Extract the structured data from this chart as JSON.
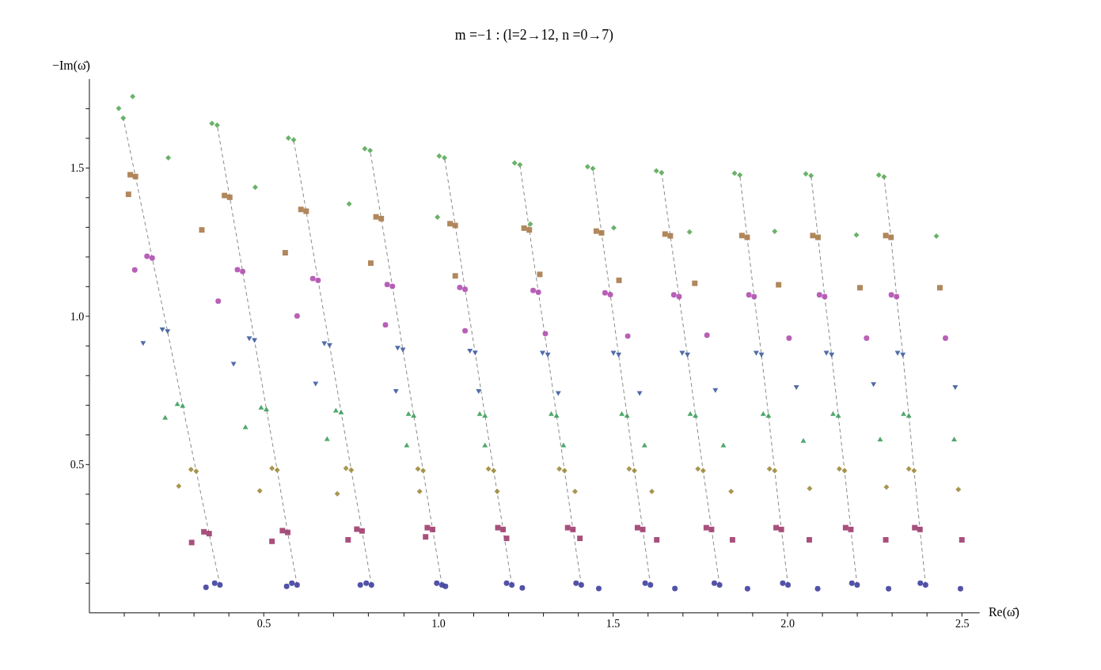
{
  "chart_data": {
    "type": "scatter",
    "title": "m =−1 : (l=2→12, n =0→7)",
    "xlabel": "Re(ω̄)",
    "ylabel": "−Im(ω̄)",
    "xlim": [
      0,
      2.55
    ],
    "ylim": [
      0,
      1.8
    ],
    "xticks": [
      {
        "value": 0.1,
        "label": null
      },
      {
        "value": 0.2,
        "label": null
      },
      {
        "value": 0.3,
        "label": null
      },
      {
        "value": 0.4,
        "label": null
      },
      0.5,
      {
        "value": 0.6,
        "label": null
      },
      {
        "value": 0.7,
        "label": null
      },
      {
        "value": 0.8,
        "label": null
      },
      {
        "value": 0.9,
        "label": null
      },
      {
        "value": 1,
        "label": "1.0"
      },
      {
        "value": 1.1,
        "label": null
      },
      {
        "value": 1.2,
        "label": null
      },
      {
        "value": 1.3,
        "label": null
      },
      {
        "value": 1.4,
        "label": null
      },
      1.5,
      {
        "value": 1.6,
        "label": null
      },
      {
        "value": 1.7,
        "label": null
      },
      {
        "value": 1.8,
        "label": null
      },
      {
        "value": 1.9,
        "label": null
      },
      {
        "value": 2,
        "label": "2.0"
      },
      {
        "value": 2.1,
        "label": null
      },
      {
        "value": 2.2,
        "label": null
      },
      {
        "value": 2.3,
        "label": null
      },
      {
        "value": 2.4,
        "label": null
      },
      2.5
    ],
    "yticks": [
      {
        "value": 0.1,
        "label": null
      },
      {
        "value": 0.2,
        "label": null
      },
      {
        "value": 0.3,
        "label": null
      },
      {
        "value": 0.4,
        "label": null
      },
      0.5,
      {
        "value": 0.6,
        "label": null
      },
      {
        "value": 0.7,
        "label": null
      },
      {
        "value": 0.8,
        "label": null
      },
      {
        "value": 0.9,
        "label": null
      },
      {
        "value": 1,
        "label": "1.0"
      },
      {
        "value": 1.1,
        "label": null
      },
      {
        "value": 1.2,
        "label": null
      },
      {
        "value": 1.3,
        "label": null
      },
      {
        "value": 1.4,
        "label": null
      },
      1.5,
      {
        "value": 1.6,
        "label": null
      },
      {
        "value": 1.7,
        "label": null
      }
    ],
    "grid": false,
    "series": [
      {
        "type": "line",
        "line_style": "dashed",
        "color": "#808080",
        "x": [
          0.375,
          0.344,
          0.307,
          0.268,
          0.225,
          0.181,
          0.133,
          0.098
        ],
        "values": [
          0.093,
          0.266,
          0.476,
          0.698,
          0.947,
          1.195,
          1.47,
          1.667
        ]
      },
      {
        "type": "line",
        "line_style": "dashed",
        "color": "#808080",
        "x": [
          0.596,
          0.569,
          0.539,
          0.508,
          0.474,
          0.44,
          0.403,
          0.367
        ],
        "values": [
          0.093,
          0.27,
          0.48,
          0.686,
          0.917,
          1.15,
          1.4,
          1.643
        ]
      },
      {
        "type": "line",
        "line_style": "dashed",
        "color": "#808080",
        "x": [
          0.809,
          0.782,
          0.751,
          0.722,
          0.689,
          0.656,
          0.622,
          0.586
        ],
        "values": [
          0.093,
          0.275,
          0.48,
          0.676,
          0.9,
          1.12,
          1.353,
          1.594
        ]
      },
      {
        "type": "line",
        "line_style": "dashed",
        "color": "#808080",
        "x": [
          1.011,
          0.984,
          0.957,
          0.93,
          0.899,
          0.869,
          0.837,
          0.805
        ],
        "values": [
          0.093,
          0.28,
          0.478,
          0.665,
          0.885,
          1.1,
          1.328,
          1.558
        ]
      },
      {
        "type": "line",
        "line_style": "dashed",
        "color": "#808080",
        "x": [
          1.211,
          1.186,
          1.159,
          1.134,
          1.106,
          1.077,
          1.049,
          1.018
        ],
        "values": [
          0.093,
          0.28,
          0.478,
          0.665,
          0.875,
          1.09,
          1.305,
          1.533
        ]
      },
      {
        "type": "line",
        "line_style": "dashed",
        "color": "#808080",
        "x": [
          1.41,
          1.386,
          1.362,
          1.339,
          1.314,
          1.287,
          1.261,
          1.234
        ],
        "values": [
          0.093,
          0.28,
          0.478,
          0.665,
          0.868,
          1.08,
          1.29,
          1.51
        ]
      },
      {
        "type": "line",
        "line_style": "dashed",
        "color": "#808080",
        "x": [
          1.608,
          1.586,
          1.562,
          1.541,
          1.517,
          1.493,
          1.468,
          1.443
        ],
        "values": [
          0.093,
          0.28,
          0.478,
          0.665,
          0.868,
          1.072,
          1.28,
          1.497
        ]
      },
      {
        "type": "line",
        "line_style": "dashed",
        "color": "#808080",
        "x": [
          1.806,
          1.783,
          1.759,
          1.737,
          1.714,
          1.69,
          1.665,
          1.64
        ],
        "values": [
          0.093,
          0.28,
          0.478,
          0.665,
          0.868,
          1.065,
          1.27,
          1.483
        ]
      },
      {
        "type": "line",
        "line_style": "dashed",
        "color": "#808080",
        "x": [
          2.002,
          1.983,
          1.964,
          1.946,
          1.926,
          1.905,
          1.885,
          1.864
        ],
        "values": [
          0.093,
          0.28,
          0.478,
          0.665,
          0.868,
          1.065,
          1.265,
          1.475
        ]
      },
      {
        "type": "line",
        "line_style": "dashed",
        "color": "#808080",
        "x": [
          2.2,
          2.182,
          2.164,
          2.146,
          2.127,
          2.107,
          2.088,
          2.068
        ],
        "values": [
          0.093,
          0.28,
          0.478,
          0.665,
          0.868,
          1.065,
          1.265,
          1.473
        ]
      },
      {
        "type": "line",
        "line_style": "dashed",
        "color": "#808080",
        "x": [
          2.396,
          2.38,
          2.363,
          2.348,
          2.331,
          2.313,
          2.297,
          2.277
        ],
        "values": [
          0.093,
          0.28,
          0.478,
          0.665,
          0.868,
          1.065,
          1.265,
          1.469
        ]
      },
      {
        "marker": "circle",
        "color": "#3f3f9f",
        "x": [
          0.375,
          0.36,
          0.335,
          0.596,
          0.581,
          0.566,
          0.809,
          0.794,
          0.777,
          1.011,
          0.996,
          1.021,
          1.211,
          1.196,
          1.241,
          1.41,
          1.395,
          1.46,
          1.608,
          1.593,
          1.678,
          1.806,
          1.791,
          1.886,
          2.002,
          1.987,
          2.087,
          2.2,
          2.185,
          2.29,
          2.396,
          2.381,
          2.496
        ],
        "values": [
          0.093,
          0.099,
          0.085,
          0.093,
          0.099,
          0.088,
          0.093,
          0.099,
          0.093,
          0.093,
          0.099,
          0.088,
          0.093,
          0.099,
          0.083,
          0.093,
          0.099,
          0.081,
          0.093,
          0.099,
          0.081,
          0.093,
          0.099,
          0.08,
          0.093,
          0.099,
          0.08,
          0.093,
          0.099,
          0.08,
          0.093,
          0.099,
          0.08
        ]
      },
      {
        "marker": "square",
        "color": "#9e3d6e",
        "x": [
          0.344,
          0.329,
          0.294,
          0.569,
          0.554,
          0.524,
          0.782,
          0.767,
          0.742,
          0.984,
          0.969,
          0.964,
          1.186,
          1.171,
          1.196,
          1.386,
          1.371,
          1.406,
          1.586,
          1.571,
          1.626,
          1.783,
          1.768,
          1.843,
          1.983,
          1.968,
          2.063,
          2.182,
          2.167,
          2.282,
          2.38,
          2.365,
          2.5
        ],
        "values": [
          0.266,
          0.272,
          0.236,
          0.27,
          0.276,
          0.24,
          0.275,
          0.281,
          0.245,
          0.28,
          0.286,
          0.255,
          0.28,
          0.286,
          0.25,
          0.28,
          0.286,
          0.25,
          0.28,
          0.286,
          0.245,
          0.28,
          0.286,
          0.245,
          0.28,
          0.286,
          0.245,
          0.28,
          0.286,
          0.245,
          0.28,
          0.286,
          0.245
        ]
      },
      {
        "marker": "diamond",
        "color": "#9e8b3d",
        "x": [
          0.307,
          0.292,
          0.257,
          0.539,
          0.524,
          0.489,
          0.751,
          0.736,
          0.711,
          0.957,
          0.942,
          0.947,
          1.159,
          1.144,
          1.169,
          1.362,
          1.347,
          1.392,
          1.562,
          1.547,
          1.612,
          1.759,
          1.744,
          1.839,
          1.964,
          1.949,
          2.064,
          2.164,
          2.149,
          2.284,
          2.363,
          2.348,
          2.49
        ],
        "values": [
          0.476,
          0.482,
          0.426,
          0.48,
          0.486,
          0.41,
          0.48,
          0.486,
          0.4,
          0.478,
          0.484,
          0.408,
          0.478,
          0.484,
          0.408,
          0.478,
          0.484,
          0.408,
          0.478,
          0.484,
          0.408,
          0.478,
          0.484,
          0.408,
          0.478,
          0.484,
          0.418,
          0.478,
          0.484,
          0.423,
          0.478,
          0.484,
          0.415
        ]
      },
      {
        "marker": "triangle",
        "color": "#3d9e5c",
        "x": [
          0.268,
          0.253,
          0.218,
          0.508,
          0.493,
          0.448,
          0.722,
          0.707,
          0.682,
          0.93,
          0.915,
          0.91,
          1.134,
          1.119,
          1.134,
          1.339,
          1.324,
          1.359,
          1.541,
          1.526,
          1.591,
          1.737,
          1.722,
          1.817,
          1.946,
          1.931,
          2.046,
          2.146,
          2.131,
          2.266,
          2.348,
          2.333,
          2.478
        ],
        "values": [
          0.698,
          0.704,
          0.658,
          0.686,
          0.692,
          0.626,
          0.676,
          0.682,
          0.586,
          0.665,
          0.671,
          0.565,
          0.665,
          0.671,
          0.565,
          0.665,
          0.671,
          0.565,
          0.665,
          0.671,
          0.565,
          0.665,
          0.671,
          0.565,
          0.665,
          0.671,
          0.58,
          0.665,
          0.671,
          0.585,
          0.665,
          0.671,
          0.585
        ]
      },
      {
        "marker": "triangle-down",
        "color": "#3d5c9e",
        "x": [
          0.225,
          0.21,
          0.155,
          0.474,
          0.459,
          0.414,
          0.689,
          0.674,
          0.649,
          0.899,
          0.884,
          0.879,
          1.106,
          1.091,
          1.116,
          1.314,
          1.299,
          1.344,
          1.517,
          1.502,
          1.577,
          1.714,
          1.699,
          1.794,
          1.926,
          1.911,
          2.026,
          2.127,
          2.112,
          2.247,
          2.331,
          2.316,
          2.481
        ],
        "values": [
          0.947,
          0.953,
          0.907,
          0.917,
          0.923,
          0.837,
          0.9,
          0.906,
          0.77,
          0.885,
          0.891,
          0.745,
          0.875,
          0.881,
          0.745,
          0.868,
          0.874,
          0.738,
          0.868,
          0.874,
          0.738,
          0.868,
          0.874,
          0.748,
          0.868,
          0.874,
          0.758,
          0.868,
          0.874,
          0.768,
          0.868,
          0.874,
          0.758
        ]
      },
      {
        "marker": "circle",
        "color": "#b04fb0",
        "x": [
          0.181,
          0.166,
          0.131,
          0.44,
          0.425,
          0.37,
          0.656,
          0.641,
          0.596,
          0.869,
          0.854,
          0.849,
          1.077,
          1.062,
          1.077,
          1.287,
          1.272,
          1.307,
          1.493,
          1.478,
          1.543,
          1.69,
          1.675,
          1.77,
          1.905,
          1.89,
          2.005,
          2.107,
          2.092,
          2.227,
          2.313,
          2.298,
          2.453
        ],
        "values": [
          1.195,
          1.201,
          1.155,
          1.15,
          1.156,
          1.05,
          1.12,
          1.126,
          1.0,
          1.1,
          1.106,
          0.97,
          1.09,
          1.096,
          0.95,
          1.08,
          1.086,
          0.94,
          1.072,
          1.078,
          0.932,
          1.065,
          1.071,
          0.935,
          1.065,
          1.071,
          0.925,
          1.065,
          1.071,
          0.925,
          1.065,
          1.071,
          0.925
        ]
      },
      {
        "marker": "square",
        "color": "#a87a4a",
        "x": [
          0.133,
          0.118,
          0.113,
          0.403,
          0.388,
          0.323,
          0.622,
          0.607,
          0.562,
          0.837,
          0.822,
          0.807,
          1.049,
          1.034,
          1.049,
          1.261,
          1.246,
          1.291,
          1.468,
          1.453,
          1.518,
          1.665,
          1.65,
          1.735,
          1.885,
          1.87,
          1.975,
          2.088,
          2.073,
          2.208,
          2.297,
          2.282,
          2.437
        ],
        "values": [
          1.47,
          1.476,
          1.41,
          1.4,
          1.406,
          1.29,
          1.353,
          1.359,
          1.213,
          1.328,
          1.334,
          1.178,
          1.305,
          1.311,
          1.135,
          1.29,
          1.296,
          1.14,
          1.28,
          1.286,
          1.12,
          1.27,
          1.276,
          1.11,
          1.265,
          1.271,
          1.105,
          1.265,
          1.271,
          1.095,
          1.265,
          1.271,
          1.095
        ]
      },
      {
        "marker": "diamond",
        "color": "#5aaa5a",
        "x": [
          0.098,
          0.125,
          0.085,
          0.367,
          0.352,
          0.227,
          0.586,
          0.571,
          0.476,
          0.805,
          0.79,
          0.745,
          1.018,
          1.003,
          0.998,
          1.234,
          1.219,
          1.264,
          1.443,
          1.428,
          1.503,
          1.64,
          1.625,
          1.72,
          1.864,
          1.849,
          1.964,
          2.068,
          2.053,
          2.198,
          2.277,
          2.262,
          2.427
        ],
        "values": [
          1.667,
          1.74,
          1.7,
          1.643,
          1.649,
          1.533,
          1.594,
          1.6,
          1.434,
          1.558,
          1.564,
          1.378,
          1.533,
          1.539,
          1.333,
          1.51,
          1.516,
          1.31,
          1.497,
          1.503,
          1.297,
          1.483,
          1.489,
          1.283,
          1.475,
          1.481,
          1.285,
          1.473,
          1.479,
          1.273,
          1.469,
          1.475,
          1.269
        ]
      }
    ]
  }
}
